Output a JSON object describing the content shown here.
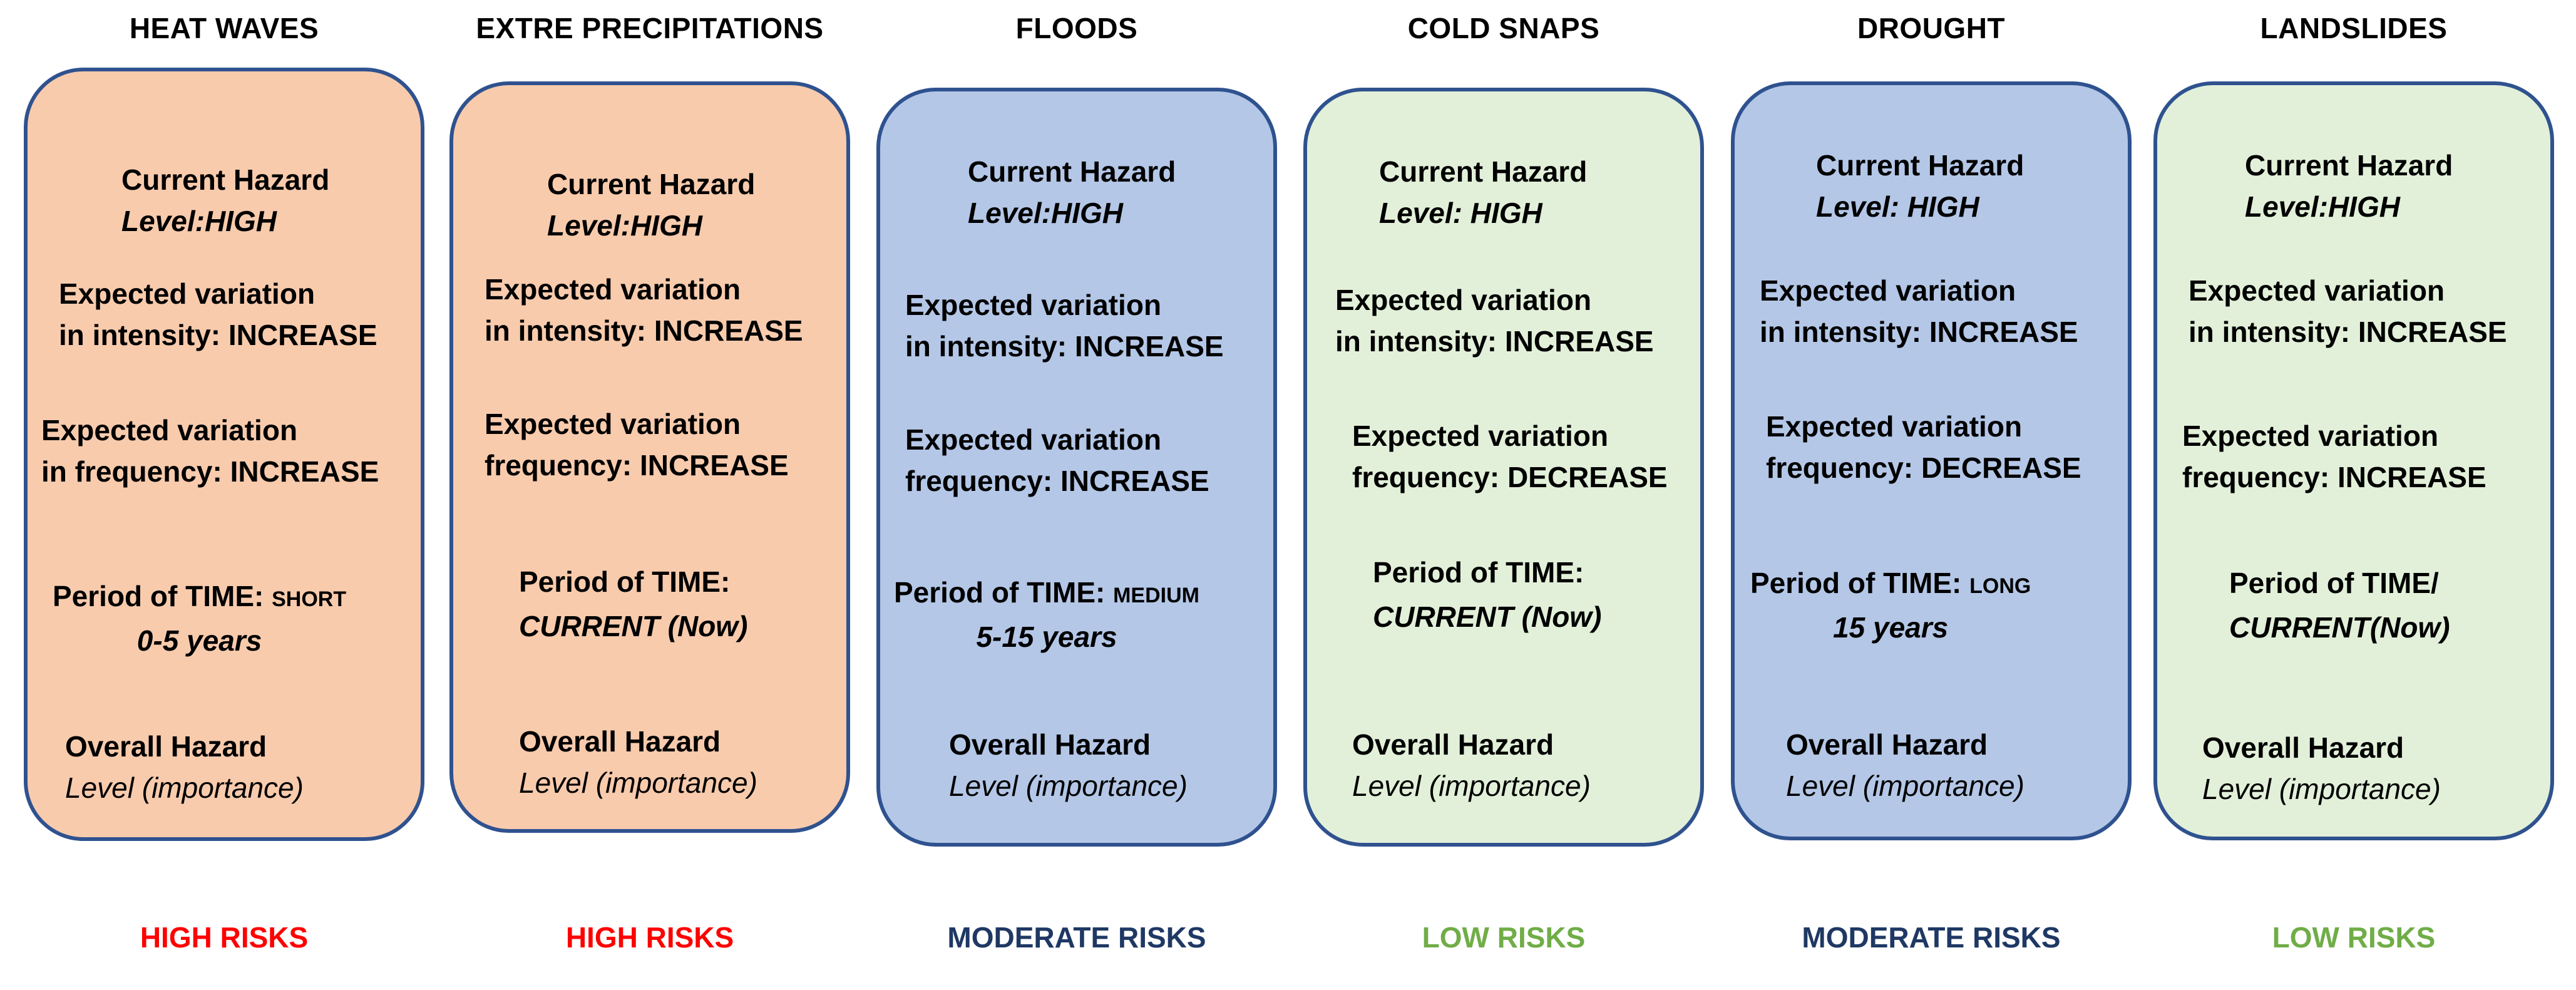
{
  "colors": {
    "orange_fill": "#f8cbad",
    "blue_fill": "#b4c7e7",
    "green_fill": "#e2f0d9",
    "border": "#2f528f",
    "high_risk": "#ff0000",
    "moderate_risk": "#1f3864",
    "low_risk": "#70ad47"
  },
  "columns": [
    {
      "title": "HEAT WAVES",
      "current_hazard": {
        "line1": "Current Hazard",
        "line2": "Level:HIGH"
      },
      "intensity": {
        "line1": "Expected variation",
        "line2": "in intensity: INCREASE"
      },
      "frequency": {
        "line1": "Expected variation",
        "line2": "in frequency: INCREASE"
      },
      "period": {
        "line1": "Period of TIME: ",
        "line1_suffix": "SHORT",
        "line2": "0-5 years"
      },
      "overall": {
        "line1": "Overall Hazard",
        "line2": "Level (importance)"
      },
      "risk": "HIGH RISKS"
    },
    {
      "title": "EXTRE PRECIPITATIONS",
      "current_hazard": {
        "line1": "Current Hazard",
        "line2": "Level:HIGH"
      },
      "intensity": {
        "line1": "Expected variation",
        "line2": "in intensity: INCREASE"
      },
      "frequency": {
        "line1": "Expected variation",
        "line2": "frequency: INCREASE"
      },
      "period": {
        "line1": "Period of TIME:",
        "line1_suffix": "",
        "line2": "CURRENT (Now)"
      },
      "overall": {
        "line1": "Overall Hazard",
        "line2": "Level (importance)"
      },
      "risk": "HIGH RISKS"
    },
    {
      "title": "FLOODS",
      "current_hazard": {
        "line1": "Current Hazard",
        "line2": "Level:HIGH"
      },
      "intensity": {
        "line1": "Expected variation",
        "line2": "in intensity: INCREASE"
      },
      "frequency": {
        "line1": "Expected variation",
        "line2": "frequency: INCREASE"
      },
      "period": {
        "line1": "Period of TIME: ",
        "line1_suffix": "MEDIUM",
        "line2": "5-15 years"
      },
      "overall": {
        "line1": "Overall Hazard",
        "line2": "Level (importance)"
      },
      "risk": "MODERATE RISKS"
    },
    {
      "title": "COLD SNAPS",
      "current_hazard": {
        "line1": "Current Hazard",
        "line2": "Level: HIGH"
      },
      "intensity": {
        "line1": "Expected variation",
        "line2": "in intensity: INCREASE"
      },
      "frequency": {
        "line1": "Expected variation",
        "line2": "frequency: DECREASE"
      },
      "period": {
        "line1": "Period of TIME:",
        "line1_suffix": "",
        "line2": "CURRENT (Now)"
      },
      "overall": {
        "line1": "Overall Hazard",
        "line2": "Level (importance)"
      },
      "risk": "LOW RISKS"
    },
    {
      "title": "DROUGHT",
      "current_hazard": {
        "line1": "Current Hazard",
        "line2": "Level: HIGH"
      },
      "intensity": {
        "line1": "Expected variation",
        "line2": "in intensity: INCREASE"
      },
      "frequency": {
        "line1": "Expected variation",
        "line2": "frequency: DECREASE"
      },
      "period": {
        "line1": "Period of TIME: ",
        "line1_suffix": "LONG",
        "line2": "15 years"
      },
      "overall": {
        "line1": "Overall Hazard",
        "line2": "Level (importance)"
      },
      "risk": "MODERATE RISKS"
    },
    {
      "title": "LANDSLIDES",
      "current_hazard": {
        "line1": "Current Hazard",
        "line2": "Level:HIGH"
      },
      "intensity": {
        "line1": "Expected variation",
        "line2": "in intensity: INCREASE"
      },
      "frequency": {
        "line1": "Expected variation",
        "line2": "frequency: INCREASE"
      },
      "period": {
        "line1": "Period of TIME/",
        "line1_suffix": "",
        "line2": "CURRENT(Now)"
      },
      "overall": {
        "line1": "Overall Hazard",
        "line2": "Level (importance)"
      },
      "risk": "LOW RISKS"
    }
  ]
}
